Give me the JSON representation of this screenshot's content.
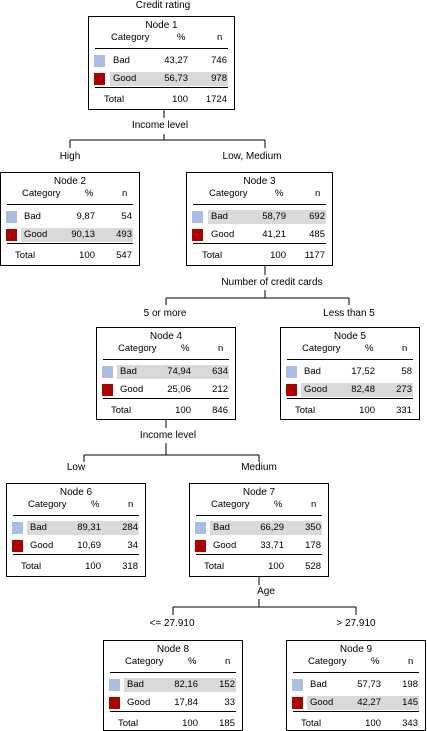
{
  "root_label": "Credit rating",
  "colors": {
    "bad": "#a9bde6",
    "good": "#b00000",
    "highlight": "#d9d9d9"
  },
  "headers": {
    "category": "Category",
    "pct": "%",
    "n": "n"
  },
  "categories": {
    "bad": "Bad",
    "good": "Good",
    "total": "Total"
  },
  "splits": {
    "s1": {
      "variable": "Income level",
      "left": "High",
      "right": "Low, Medium"
    },
    "s2": {
      "variable": "Number of credit cards",
      "left": "5 or more",
      "right": "Less than 5"
    },
    "s3": {
      "variable": "Income level",
      "left": "Low",
      "right": "Medium"
    },
    "s4": {
      "variable": "Age",
      "left": "<= 27.910",
      "right": "> 27.910"
    }
  },
  "nodes": {
    "n1": {
      "title": "Node 1",
      "bad_pct": "43,27",
      "bad_n": "746",
      "good_pct": "56,73",
      "good_n": "978",
      "total_pct": "100",
      "total_n": "1724",
      "highlight": "good"
    },
    "n2": {
      "title": "Node 2",
      "bad_pct": "9,87",
      "bad_n": "54",
      "good_pct": "90,13",
      "good_n": "493",
      "total_pct": "100",
      "total_n": "547",
      "highlight": "good"
    },
    "n3": {
      "title": "Node 3",
      "bad_pct": "58,79",
      "bad_n": "692",
      "good_pct": "41,21",
      "good_n": "485",
      "total_pct": "100",
      "total_n": "1177",
      "highlight": "bad"
    },
    "n4": {
      "title": "Node 4",
      "bad_pct": "74,94",
      "bad_n": "634",
      "good_pct": "25,06",
      "good_n": "212",
      "total_pct": "100",
      "total_n": "846",
      "highlight": "bad"
    },
    "n5": {
      "title": "Node 5",
      "bad_pct": "17,52",
      "bad_n": "58",
      "good_pct": "82,48",
      "good_n": "273",
      "total_pct": "100",
      "total_n": "331",
      "highlight": "good"
    },
    "n6": {
      "title": "Node 6",
      "bad_pct": "89,31",
      "bad_n": "284",
      "good_pct": "10,69",
      "good_n": "34",
      "total_pct": "100",
      "total_n": "318",
      "highlight": "bad"
    },
    "n7": {
      "title": "Node 7",
      "bad_pct": "66,29",
      "bad_n": "350",
      "good_pct": "33,71",
      "good_n": "178",
      "total_pct": "100",
      "total_n": "528",
      "highlight": "bad"
    },
    "n8": {
      "title": "Node 8",
      "bad_pct": "82,16",
      "bad_n": "152",
      "good_pct": "17,84",
      "good_n": "33",
      "total_pct": "100",
      "total_n": "185",
      "highlight": "bad"
    },
    "n9": {
      "title": "Node 9",
      "bad_pct": "57,73",
      "bad_n": "198",
      "good_pct": "42,27",
      "good_n": "145",
      "total_pct": "100",
      "total_n": "343",
      "highlight": "good"
    }
  }
}
